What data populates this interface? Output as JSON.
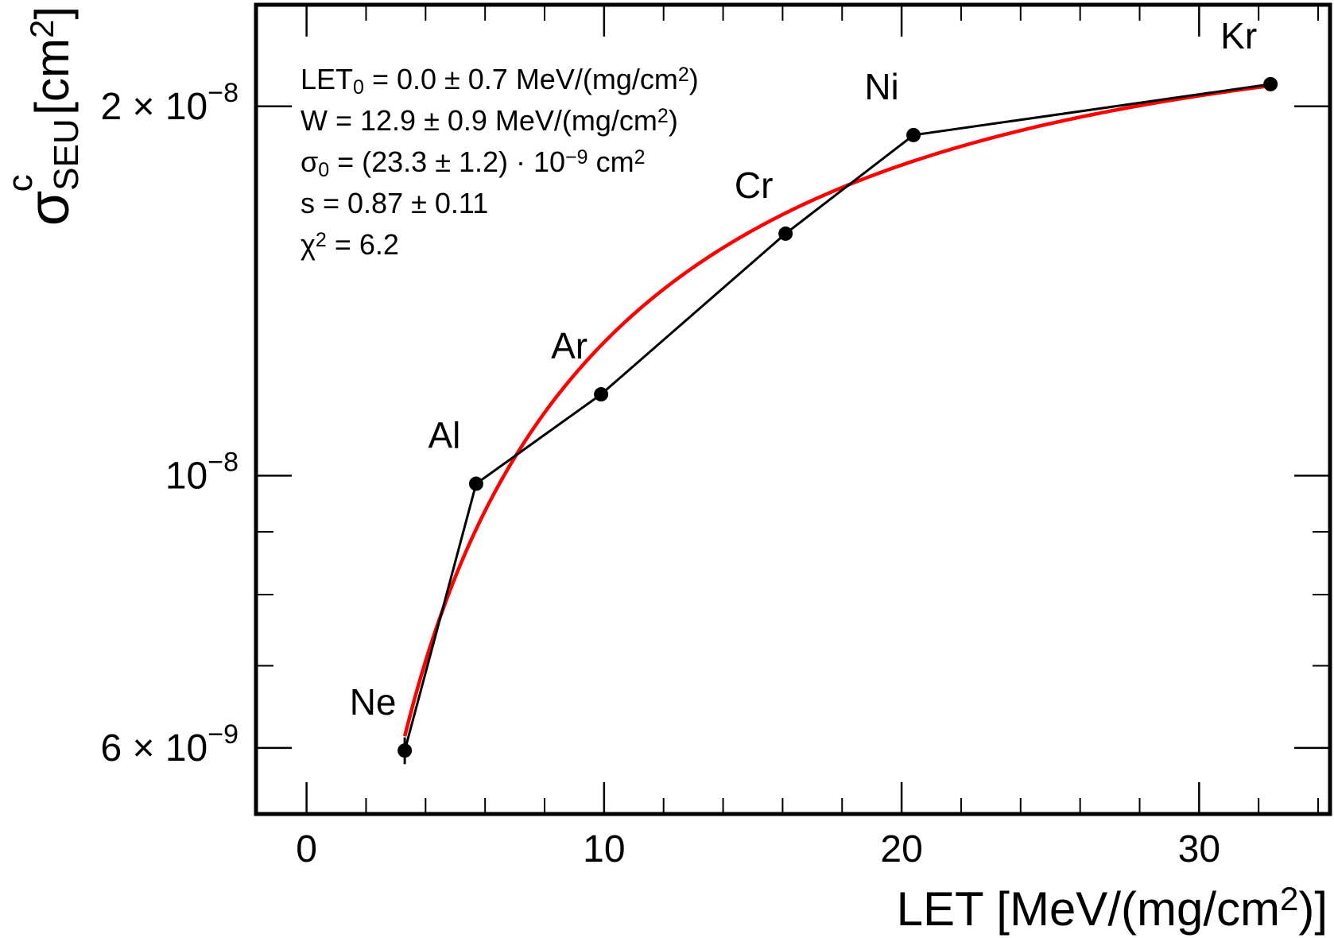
{
  "chart_data": {
    "type": "scatter",
    "title": "",
    "xlabel": {
      "main": "LET [MeV/(mg/cm",
      "sup": "2",
      "end": ")]"
    },
    "ylabel": {
      "main": "σ",
      "sup": "c",
      "sub": "SEU",
      "unit": "[cm",
      "unit_sup": "2",
      "unit_end": "]"
    },
    "x_scale": "linear",
    "y_scale": "log",
    "xlim": [
      -1.7,
      34.4
    ],
    "ylim": [
      5.3e-09,
      2.42e-08
    ],
    "x_ticks": [
      {
        "value": 0,
        "label": "0"
      },
      {
        "value": 10,
        "label": "10"
      },
      {
        "value": 20,
        "label": "20"
      },
      {
        "value": 30,
        "label": "30"
      }
    ],
    "x_minor_ticks": [
      2,
      4,
      6,
      8,
      12,
      14,
      16,
      18,
      22,
      24,
      26,
      28,
      32,
      34
    ],
    "y_ticks": [
      {
        "value": 6e-09,
        "mantissa": "6 × 10",
        "exp": "−9"
      },
      {
        "value": 1e-08,
        "mantissa": "10",
        "exp": "−8"
      },
      {
        "value": 2e-08,
        "mantissa": "2 × 10",
        "exp": "−8"
      }
    ],
    "y_minor_ticks": [
      7e-09,
      8e-09,
      9e-09,
      3e-08
    ],
    "grid": false,
    "series": [
      {
        "type": "line+markers",
        "color": "#000000",
        "points": [
          {
            "x": 3.3,
            "y": 5.97e-09,
            "label": "Ne",
            "err": 1.5e-10
          },
          {
            "x": 5.7,
            "y": 9.85e-09,
            "label": "Al",
            "err": 1e-10
          },
          {
            "x": 9.9,
            "y": 1.165e-08,
            "label": "Ar",
            "err": 1e-10
          },
          {
            "x": 16.1,
            "y": 1.575e-08,
            "label": "Cr",
            "err": 1e-10
          },
          {
            "x": 20.4,
            "y": 1.895e-08,
            "label": "Ni",
            "err": 1e-10
          },
          {
            "x": 32.4,
            "y": 2.085e-08,
            "label": "Kr",
            "err": 1e-10
          }
        ]
      },
      {
        "type": "fit",
        "color": "#ff0000",
        "model": "weibull",
        "params": {
          "let0": 0.0,
          "w": 12.9,
          "sigma0": 2.33e-08,
          "s": 0.87
        },
        "x_range": [
          3.3,
          32.4
        ]
      }
    ],
    "annotations": [
      [
        {
          "t": "LET"
        },
        {
          "t": "0",
          "sub": true
        },
        {
          "t": " = 0.0 ± 0.7  MeV/(mg/cm"
        },
        {
          "t": "2",
          "sup": true
        },
        {
          "t": ")"
        }
      ],
      [
        {
          "t": "W = 12.9 ± 0.9  MeV/(mg/cm"
        },
        {
          "t": "2",
          "sup": true
        },
        {
          "t": ")"
        }
      ],
      [
        {
          "t": "σ"
        },
        {
          "t": "0",
          "sub": true
        },
        {
          "t": " = (23.3 ± 1.2) · 10"
        },
        {
          "t": "−9",
          "sup": true
        },
        {
          "t": "  cm"
        },
        {
          "t": "2",
          "sup": true
        }
      ],
      [
        {
          "t": "s = 0.87 ± 0.11"
        }
      ],
      [
        {
          "t": "χ"
        },
        {
          "t": "2",
          "sup": true
        },
        {
          "t": " = 6.2"
        }
      ]
    ]
  }
}
